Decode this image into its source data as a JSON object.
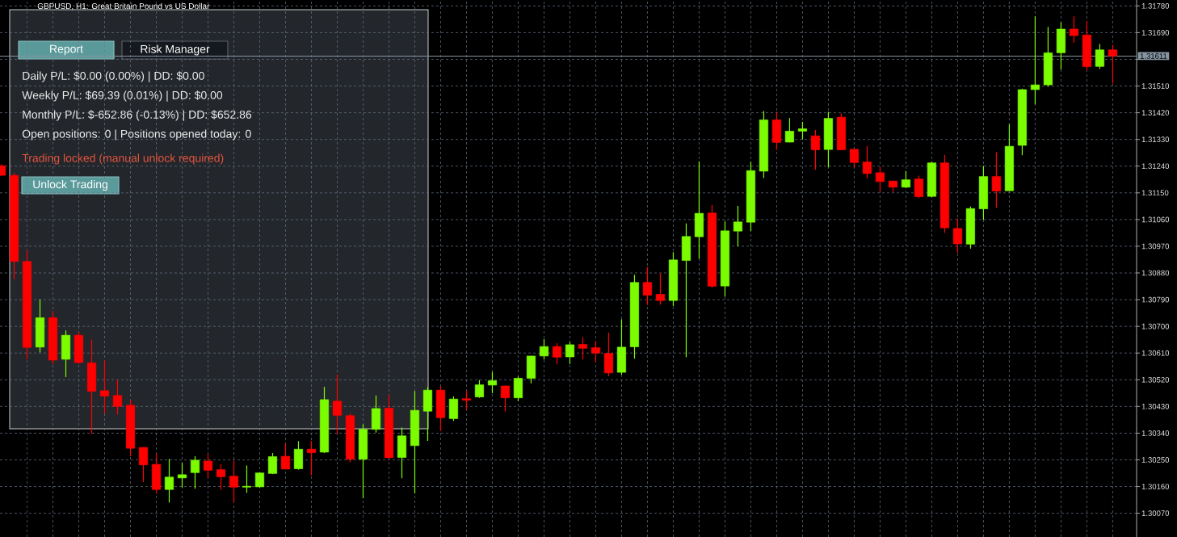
{
  "chart_data": {
    "type": "candlestick",
    "title": "GBPUSD, H1: Great Britain Pound vs US Dollar",
    "categories": [
      null,
      null,
      null,
      null,
      null,
      null,
      null,
      null,
      null,
      null,
      null,
      null,
      null,
      null,
      null,
      null,
      null,
      null,
      null,
      null,
      null,
      null,
      null,
      null,
      null,
      null,
      null,
      null,
      null,
      null,
      null,
      null,
      null,
      null,
      null,
      null,
      null,
      null,
      null,
      null,
      null,
      null,
      null,
      null,
      null,
      null,
      null,
      null,
      null,
      null,
      null,
      null,
      null,
      null,
      null,
      null,
      null,
      null,
      null,
      null,
      null,
      null,
      null,
      null,
      null,
      null,
      null,
      null,
      null,
      null,
      null,
      null,
      null,
      null,
      null,
      null,
      null,
      null,
      null,
      null,
      null,
      null,
      null,
      null,
      null,
      null,
      null
    ],
    "ohlc": [
      [
        1.31241,
        1.31246,
        1.31206,
        1.31209
      ],
      [
        1.31209,
        1.31217,
        1.30858,
        1.30919
      ],
      [
        1.30919,
        1.30957,
        1.30589,
        1.30629
      ],
      [
        1.3063,
        1.30791,
        1.30612,
        1.30729
      ],
      [
        1.30729,
        1.30752,
        1.30573,
        1.30586
      ],
      [
        1.30589,
        1.30686,
        1.30529,
        1.3067
      ],
      [
        1.3067,
        1.30681,
        1.30573,
        1.30578
      ],
      [
        1.30577,
        1.30655,
        1.30338,
        1.30481
      ],
      [
        1.30483,
        1.30585,
        1.30406,
        1.30465
      ],
      [
        1.30467,
        1.3052,
        1.30403,
        1.3043
      ],
      [
        1.30434,
        1.30453,
        1.30262,
        1.30289
      ],
      [
        1.30292,
        1.30292,
        1.30175,
        1.30233
      ],
      [
        1.30235,
        1.30271,
        1.30137,
        1.3015
      ],
      [
        1.3015,
        1.30253,
        1.30106,
        1.30192
      ],
      [
        1.30189,
        1.3024,
        1.30157,
        1.302
      ],
      [
        1.30207,
        1.30262,
        1.30153,
        1.30249
      ],
      [
        1.30246,
        1.30271,
        1.30189,
        1.30215
      ],
      [
        1.30217,
        1.30235,
        1.30149,
        1.30193
      ],
      [
        1.30195,
        1.30247,
        1.30106,
        1.30158
      ],
      [
        1.30158,
        1.30231,
        1.30139,
        1.30161
      ],
      [
        1.30159,
        1.30208,
        1.30157,
        1.30206
      ],
      [
        1.30204,
        1.30273,
        1.30202,
        1.30261
      ],
      [
        1.30262,
        1.30305,
        1.30219,
        1.30219
      ],
      [
        1.3022,
        1.30313,
        1.30217,
        1.30286
      ],
      [
        1.30286,
        1.30314,
        1.30198,
        1.30274
      ],
      [
        1.30276,
        1.30496,
        1.30273,
        1.30453
      ],
      [
        1.30448,
        1.30537,
        1.30338,
        1.304
      ],
      [
        1.30399,
        1.30407,
        1.30242,
        1.30252
      ],
      [
        1.30252,
        1.3037,
        1.30121,
        1.30353
      ],
      [
        1.30353,
        1.30467,
        1.30342,
        1.30423
      ],
      [
        1.30424,
        1.30469,
        1.30257,
        1.30257
      ],
      [
        1.30258,
        1.30359,
        1.30188,
        1.30331
      ],
      [
        1.30298,
        1.30482,
        1.30137,
        1.30417
      ],
      [
        1.30414,
        1.30496,
        1.30314,
        1.30485
      ],
      [
        1.30485,
        1.30498,
        1.30347,
        1.30392
      ],
      [
        1.30389,
        1.30464,
        1.30381,
        1.30455
      ],
      [
        1.30456,
        1.30483,
        1.30419,
        1.30451
      ],
      [
        1.30462,
        1.30519,
        1.30459,
        1.30503
      ],
      [
        1.30502,
        1.30546,
        1.30475,
        1.30517
      ],
      [
        1.30499,
        1.30501,
        1.30413,
        1.30459
      ],
      [
        1.30459,
        1.30531,
        1.30448,
        1.30525
      ],
      [
        1.30525,
        1.306,
        1.30508,
        1.306
      ],
      [
        1.306,
        1.30657,
        1.30588,
        1.30632
      ],
      [
        1.30632,
        1.30643,
        1.30572,
        1.30596
      ],
      [
        1.30597,
        1.30648,
        1.30573,
        1.30638
      ],
      [
        1.30639,
        1.30663,
        1.30588,
        1.30626
      ],
      [
        1.30628,
        1.30649,
        1.30579,
        1.3061
      ],
      [
        1.30609,
        1.30679,
        1.30532,
        1.30543
      ],
      [
        1.30545,
        1.30724,
        1.30537,
        1.3063
      ],
      [
        1.30631,
        1.30874,
        1.30591,
        1.30848
      ],
      [
        1.30848,
        1.309,
        1.30772,
        1.30805
      ],
      [
        1.30808,
        1.30879,
        1.30773,
        1.30787
      ],
      [
        1.30787,
        1.3095,
        1.30768,
        1.30924
      ],
      [
        1.30922,
        1.31047,
        1.30596,
        1.31003
      ],
      [
        1.31002,
        1.31256,
        1.30928,
        1.31081
      ],
      [
        1.31082,
        1.31109,
        1.30831,
        1.30835
      ],
      [
        1.30836,
        1.31053,
        1.308,
        1.31022
      ],
      [
        1.31021,
        1.31106,
        1.3097,
        1.31052
      ],
      [
        1.31051,
        1.31255,
        1.31021,
        1.31225
      ],
      [
        1.31223,
        1.31426,
        1.312,
        1.31396
      ],
      [
        1.31396,
        1.31423,
        1.31295,
        1.3132
      ],
      [
        1.31321,
        1.31402,
        1.3132,
        1.31358
      ],
      [
        1.31358,
        1.31389,
        1.3133,
        1.31366
      ],
      [
        1.31342,
        1.31362,
        1.31228,
        1.31295
      ],
      [
        1.31296,
        1.31423,
        1.31236,
        1.31401
      ],
      [
        1.31405,
        1.31418,
        1.31295,
        1.31295
      ],
      [
        1.31297,
        1.31297,
        1.31235,
        1.31252
      ],
      [
        1.31254,
        1.31308,
        1.31199,
        1.31215
      ],
      [
        1.31218,
        1.31238,
        1.31154,
        1.31188
      ],
      [
        1.3119,
        1.3119,
        1.31152,
        1.31169
      ],
      [
        1.31169,
        1.31224,
        1.31166,
        1.31194
      ],
      [
        1.31197,
        1.31208,
        1.31132,
        1.31137
      ],
      [
        1.31138,
        1.31255,
        1.31135,
        1.31251
      ],
      [
        1.31251,
        1.31278,
        1.31015,
        1.31032
      ],
      [
        1.3103,
        1.31063,
        1.30948,
        1.30978
      ],
      [
        1.30977,
        1.31104,
        1.30962,
        1.31097
      ],
      [
        1.31096,
        1.31241,
        1.31059,
        1.31205
      ],
      [
        1.31205,
        1.31287,
        1.311,
        1.31156
      ],
      [
        1.31157,
        1.31381,
        1.31157,
        1.31307
      ],
      [
        1.3131,
        1.31501,
        1.31277,
        1.31498
      ],
      [
        1.31498,
        1.31745,
        1.31448,
        1.31514
      ],
      [
        1.31514,
        1.31709,
        1.31508,
        1.31622
      ],
      [
        1.31622,
        1.31725,
        1.31566,
        1.31702
      ],
      [
        1.31702,
        1.31745,
        1.31656,
        1.3168
      ],
      [
        1.31682,
        1.31729,
        1.31563,
        1.31575
      ],
      [
        1.31576,
        1.31652,
        1.31568,
        1.31632
      ],
      [
        1.31632,
        1.31649,
        1.31518,
        1.31611
      ]
    ],
    "colors": [
      "#ff0000",
      "#ff0000",
      "#ff0000",
      "#7cfc00",
      "#ff0000",
      "#7cfc00",
      "#ff0000",
      "#ff0000",
      "#ff0000",
      "#ff0000",
      "#ff0000",
      "#ff0000",
      "#ff0000",
      "#7cfc00",
      "#7cfc00",
      "#7cfc00",
      "#ff0000",
      "#ff0000",
      "#ff0000",
      "#7cfc00",
      "#7cfc00",
      "#7cfc00",
      "#ff0000",
      "#7cfc00",
      "#ff0000",
      "#7cfc00",
      "#ff0000",
      "#ff0000",
      "#7cfc00",
      "#7cfc00",
      "#ff0000",
      "#7cfc00",
      "#7cfc00",
      "#7cfc00",
      "#ff0000",
      "#7cfc00",
      "#ff0000",
      "#7cfc00",
      "#7cfc00",
      "#ff0000",
      "#7cfc00",
      "#7cfc00",
      "#7cfc00",
      "#ff0000",
      "#7cfc00",
      "#ff0000",
      "#ff0000",
      "#ff0000",
      "#7cfc00",
      "#7cfc00",
      "#ff0000",
      "#ff0000",
      "#7cfc00",
      "#7cfc00",
      "#7cfc00",
      "#ff0000",
      "#7cfc00",
      "#7cfc00",
      "#7cfc00",
      "#7cfc00",
      "#ff0000",
      "#7cfc00",
      "#7cfc00",
      "#ff0000",
      "#7cfc00",
      "#ff0000",
      "#ff0000",
      "#ff0000",
      "#ff0000",
      "#ff0000",
      "#7cfc00",
      "#ff0000",
      "#7cfc00",
      "#ff0000",
      "#ff0000",
      "#7cfc00",
      "#7cfc00",
      "#ff0000",
      "#7cfc00",
      "#7cfc00",
      "#7cfc00",
      "#7cfc00",
      "#7cfc00",
      "#ff0000",
      "#ff0000",
      "#7cfc00",
      "#ff0000"
    ],
    "ylim": [
      1.2999,
      1.318
    ],
    "yticks": [
      {
        "value": 1.3007,
        "label": "1.30070"
      },
      {
        "value": 1.3016,
        "label": "1.30160"
      },
      {
        "value": 1.3025,
        "label": "1.30250"
      },
      {
        "value": 1.3034,
        "label": "1.30340"
      },
      {
        "value": 1.3043,
        "label": "1.30430"
      },
      {
        "value": 1.3052,
        "label": "1.30520"
      },
      {
        "value": 1.3061,
        "label": "1.30610"
      },
      {
        "value": 1.307,
        "label": "1.30700"
      },
      {
        "value": 1.3079,
        "label": "1.30790"
      },
      {
        "value": 1.3088,
        "label": "1.30880"
      },
      {
        "value": 1.3097,
        "label": "1.30970"
      },
      {
        "value": 1.3106,
        "label": "1.31060"
      },
      {
        "value": 1.3115,
        "label": "1.31150"
      },
      {
        "value": 1.3124,
        "label": "1.31240"
      },
      {
        "value": 1.3133,
        "label": "1.31330"
      },
      {
        "value": 1.3142,
        "label": "1.31420"
      },
      {
        "value": 1.3151,
        "label": "1.31510"
      },
      {
        "value": 1.316,
        "label": null
      },
      {
        "value": 1.3169,
        "label": "1.31690"
      },
      {
        "value": 1.3178,
        "label": "1.31780"
      }
    ],
    "grid": true,
    "tick_labels": "y",
    "ref_lines": [
      {
        "axis": "y",
        "value": 1.31611,
        "label": "1.31611",
        "color": "#8694a3"
      }
    ],
    "annotations": [
      "Report",
      "Risk Manager",
      "Daily P/L: $0.00 (0.00%) | DD: $0.00",
      "Weekly P/L: $69.39 (0.01%) | DD: $0.00",
      "Monthly P/L: $-652.86 (-0.13%) | DD: $652.86",
      "Open positions: 0 | Positions opened today: 0",
      "Trading locked (manual unlock required)",
      "Unlock Trading"
    ]
  }
}
